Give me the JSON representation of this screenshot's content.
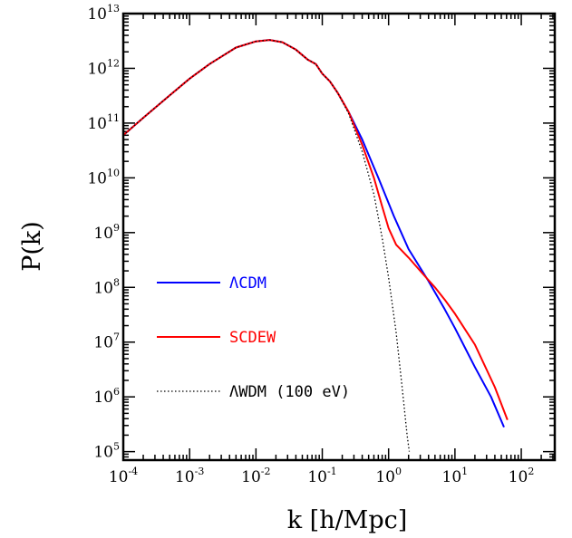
{
  "chart_data": {
    "type": "line",
    "xlabel": "k [h/Mpc]",
    "ylabel": "P(k)",
    "x_scale": "log",
    "y_scale": "log",
    "xlim": [
      0.0001,
      320
    ],
    "ylim": [
      70000,
      10000000000000
    ],
    "x_ticks": [
      {
        "base": "10",
        "exp": "-4",
        "value": 0.0001
      },
      {
        "base": "10",
        "exp": "-3",
        "value": 0.001
      },
      {
        "base": "10",
        "exp": "-2",
        "value": 0.01
      },
      {
        "base": "10",
        "exp": "-1",
        "value": 0.1
      },
      {
        "base": "10",
        "exp": "0",
        "value": 1
      },
      {
        "base": "10",
        "exp": "1",
        "value": 10
      },
      {
        "base": "10",
        "exp": "2",
        "value": 100
      }
    ],
    "y_ticks": [
      {
        "base": "10",
        "exp": "5",
        "value": 100000
      },
      {
        "base": "10",
        "exp": "6",
        "value": 1000000
      },
      {
        "base": "10",
        "exp": "7",
        "value": 10000000
      },
      {
        "base": "10",
        "exp": "8",
        "value": 100000000
      },
      {
        "base": "10",
        "exp": "9",
        "value": 1000000000
      },
      {
        "base": "10",
        "exp": "10",
        "value": 10000000000
      },
      {
        "base": "10",
        "exp": "11",
        "value": 100000000000
      },
      {
        "base": "10",
        "exp": "12",
        "value": 1000000000000
      },
      {
        "base": "10",
        "exp": "13",
        "value": 10000000000000
      }
    ],
    "grid": false,
    "legend_position": "left",
    "series": [
      {
        "name": "ΛCDM",
        "color": "#0000ff",
        "style": "solid",
        "points": [
          [
            0.0001,
            60000000000.0
          ],
          [
            0.0002,
            125000000000.0
          ],
          [
            0.0005,
            320000000000.0
          ],
          [
            0.001,
            650000000000.0
          ],
          [
            0.002,
            1200000000000.0
          ],
          [
            0.005,
            2400000000000.0
          ],
          [
            0.01,
            3100000000000.0
          ],
          [
            0.016,
            3300000000000.0
          ],
          [
            0.025,
            3000000000000.0
          ],
          [
            0.04,
            2200000000000.0
          ],
          [
            0.06,
            1450000000000.0
          ],
          [
            0.08,
            1200000000000.0
          ],
          [
            0.1,
            800000000000.0
          ],
          [
            0.13,
            580000000000.0
          ],
          [
            0.17,
            360000000000.0
          ],
          [
            0.25,
            160000000000.0
          ],
          [
            0.4,
            50000000000.0
          ],
          [
            0.7,
            10000000000.0
          ],
          [
            1.2,
            2000000000.0
          ],
          [
            2,
            500000000.0
          ],
          [
            4,
            130000000.0
          ],
          [
            7,
            40000000.0
          ],
          [
            10,
            18000000.0
          ],
          [
            20,
            3500000.0
          ],
          [
            35,
            1000000.0
          ],
          [
            55,
            280000.0
          ]
        ]
      },
      {
        "name": "SCDEW",
        "color": "#ff0000",
        "style": "solid",
        "points": [
          [
            0.0001,
            60000000000.0
          ],
          [
            0.0002,
            125000000000.0
          ],
          [
            0.0005,
            320000000000.0
          ],
          [
            0.001,
            650000000000.0
          ],
          [
            0.002,
            1200000000000.0
          ],
          [
            0.005,
            2400000000000.0
          ],
          [
            0.01,
            3100000000000.0
          ],
          [
            0.016,
            3300000000000.0
          ],
          [
            0.025,
            3000000000000.0
          ],
          [
            0.04,
            2200000000000.0
          ],
          [
            0.06,
            1450000000000.0
          ],
          [
            0.08,
            1200000000000.0
          ],
          [
            0.1,
            800000000000.0
          ],
          [
            0.13,
            580000000000.0
          ],
          [
            0.17,
            360000000000.0
          ],
          [
            0.25,
            160000000000.0
          ],
          [
            0.4,
            40000000000.0
          ],
          [
            0.6,
            10000000000.0
          ],
          [
            0.8,
            3000000000.0
          ],
          [
            1,
            1200000000.0
          ],
          [
            1.3,
            600000000.0
          ],
          [
            2,
            350000000.0
          ],
          [
            3,
            200000000.0
          ],
          [
            5,
            100000000.0
          ],
          [
            7,
            60000000.0
          ],
          [
            10,
            33000000.0
          ],
          [
            20,
            9000000.0
          ],
          [
            40,
            1500000.0
          ],
          [
            62,
            380000.0
          ]
        ]
      },
      {
        "name": "ΛWDM (100 eV)",
        "color": "#000000",
        "style": "dotted",
        "points": [
          [
            0.0001,
            60000000000.0
          ],
          [
            0.0002,
            125000000000.0
          ],
          [
            0.0005,
            320000000000.0
          ],
          [
            0.001,
            650000000000.0
          ],
          [
            0.002,
            1200000000000.0
          ],
          [
            0.005,
            2400000000000.0
          ],
          [
            0.01,
            3100000000000.0
          ],
          [
            0.016,
            3300000000000.0
          ],
          [
            0.025,
            3000000000000.0
          ],
          [
            0.04,
            2200000000000.0
          ],
          [
            0.06,
            1450000000000.0
          ],
          [
            0.08,
            1200000000000.0
          ],
          [
            0.1,
            800000000000.0
          ],
          [
            0.13,
            580000000000.0
          ],
          [
            0.17,
            360000000000.0
          ],
          [
            0.25,
            150000000000.0
          ],
          [
            0.4,
            30000000000.0
          ],
          [
            0.6,
            5000000000.0
          ],
          [
            0.8,
            800000000.0
          ],
          [
            1,
            150000000.0
          ],
          [
            1.3,
            15000000.0
          ],
          [
            1.6,
            1500000.0
          ],
          [
            1.9,
            200000.0
          ],
          [
            2.05,
            100000.0
          ]
        ]
      }
    ]
  }
}
